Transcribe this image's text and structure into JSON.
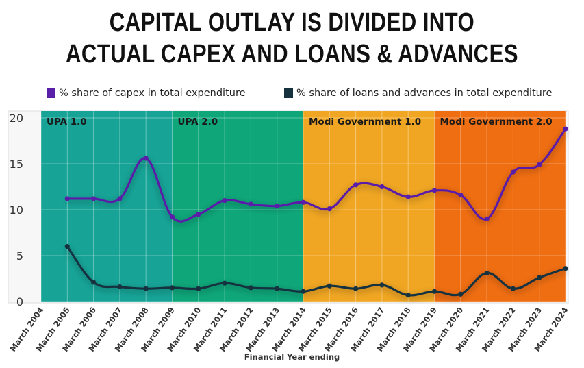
{
  "title": {
    "line1": "CAPITAL OUTLAY IS DIVIDED INTO",
    "line2": "ACTUAL CAPEX AND LOANS & ADVANCES"
  },
  "colors": {
    "capex": "#5a1fa8",
    "loans": "#16323f",
    "upa1": "#17a497",
    "upa2": "#0fa77a",
    "modi1": "#f0a623",
    "modi2": "#f06e12"
  },
  "chart_data": {
    "type": "line",
    "xlabel": "Financial Year ending",
    "ylabel": "",
    "ylim": [
      0,
      20
    ],
    "yticks": [
      0,
      5,
      10,
      15,
      20
    ],
    "x": [
      "March 2004",
      "March 2005",
      "March 2006",
      "March 2007",
      "March 2008",
      "March 2009",
      "March 2010",
      "March 2011",
      "March 2012",
      "March 2013",
      "March 2014",
      "March 2015",
      "March 2016",
      "March 2017",
      "March 2018",
      "March 2019",
      "March 2020",
      "March 2021",
      "March 2022",
      "March 2023",
      "March 2024"
    ],
    "series": [
      {
        "name": "% share of capex in total expenditure",
        "color": "#5a1fa8",
        "values": [
          null,
          11.2,
          11.2,
          11.2,
          15.6,
          9.2,
          9.5,
          11.0,
          10.6,
          10.4,
          10.8,
          10.1,
          12.7,
          12.5,
          11.4,
          12.1,
          11.6,
          9.0,
          14.1,
          14.9,
          18.8
        ]
      },
      {
        "name": "% share of loans and advances in total expenditure",
        "color": "#16323f",
        "values": [
          null,
          6.0,
          2.1,
          1.6,
          1.4,
          1.5,
          1.4,
          2.0,
          1.5,
          1.4,
          1.1,
          1.7,
          1.4,
          1.8,
          0.7,
          1.1,
          0.8,
          3.1,
          1.4,
          2.6,
          3.6
        ]
      }
    ],
    "periods": [
      {
        "label": "UPA 1.0",
        "start": "March 2004",
        "end": "March 2009",
        "color": "#17a497"
      },
      {
        "label": "UPA 2.0",
        "start": "March 2009",
        "end": "March 2014",
        "color": "#0fa77a"
      },
      {
        "label": "Modi Government 1.0",
        "start": "March 2014",
        "end": "March 2019",
        "color": "#f0a623"
      },
      {
        "label": "Modi Government 2.0",
        "start": "March 2019",
        "end": "March 2024",
        "color": "#f06e12"
      }
    ],
    "grid": true,
    "legend_position": "top"
  }
}
